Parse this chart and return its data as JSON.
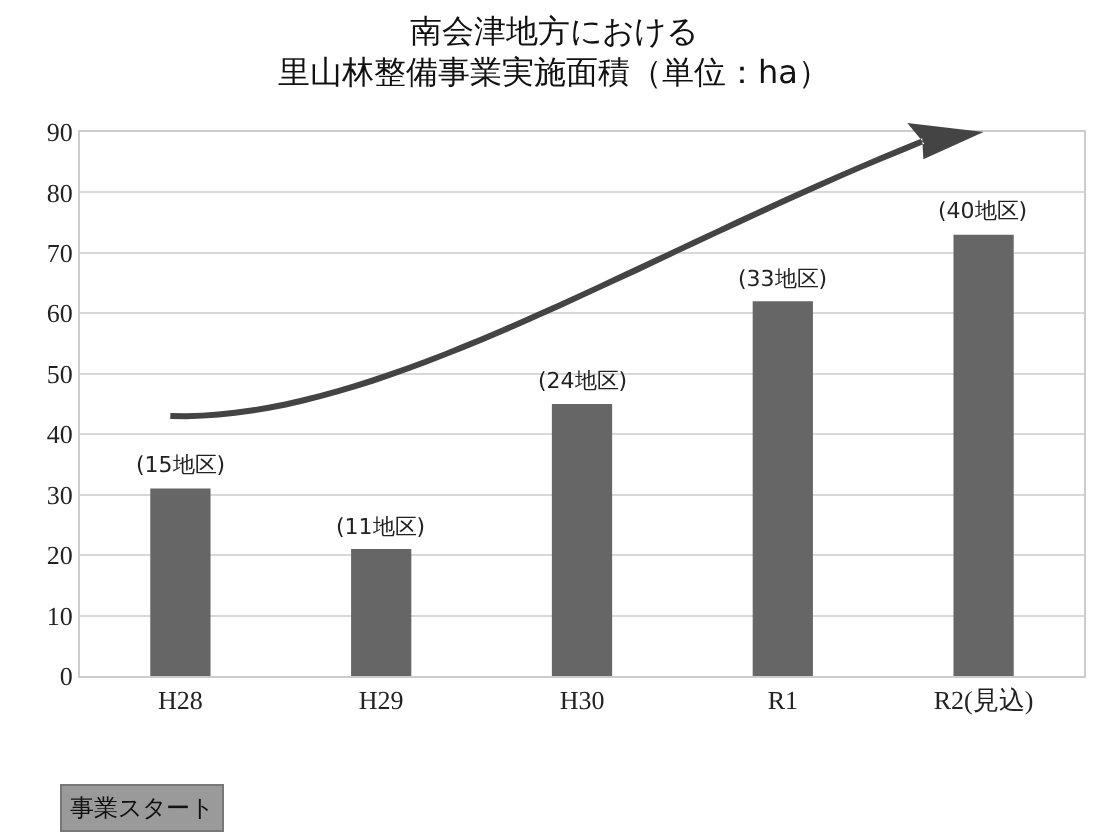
{
  "chart_data": {
    "type": "bar",
    "title": "南会津地方における",
    "subtitle": "里山林整備事業実施面積（単位：ha）",
    "categories": [
      "H28",
      "H29",
      "H30",
      "R1",
      "R2(見込)"
    ],
    "values": [
      31,
      21,
      45,
      62,
      73
    ],
    "color": "#666666",
    "ylim": [
      0,
      90
    ],
    "yticks": [
      0,
      10,
      20,
      30,
      40,
      50,
      60,
      70,
      80,
      90
    ],
    "grid": "y",
    "annotations": [
      {
        "text": "(15地区)",
        "x": "H28",
        "y": 31
      },
      {
        "text": "(11地区)",
        "x": "H29",
        "y": 21
      },
      {
        "text": "(24地区)",
        "x": "H30",
        "y": 45
      },
      {
        "text": "(33地区)",
        "x": "R1",
        "y": 62
      },
      {
        "text": "(40地区)",
        "x": "R2(見込)",
        "y": 73
      },
      "事業スタート"
    ]
  }
}
